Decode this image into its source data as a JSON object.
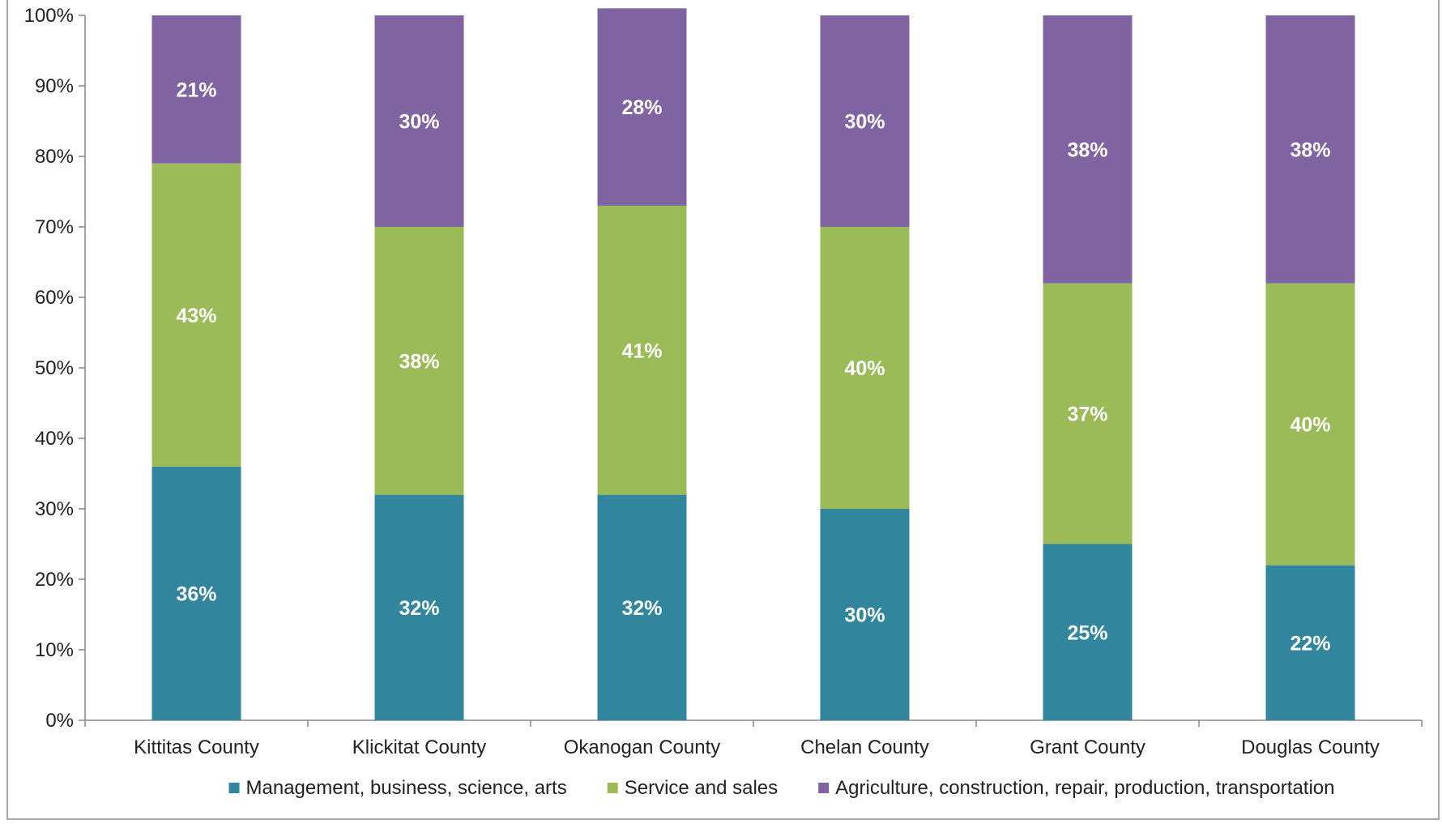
{
  "chart_data": {
    "type": "bar",
    "stacked": true,
    "percent_stacked": true,
    "title": "",
    "xlabel": "",
    "ylabel": "",
    "ylim": [
      0,
      100
    ],
    "y_ticks": [
      "0%",
      "10%",
      "20%",
      "30%",
      "40%",
      "50%",
      "60%",
      "70%",
      "80%",
      "90%",
      "100%"
    ],
    "grid": false,
    "legend_position": "bottom",
    "categories": [
      "Kittitas County",
      "Klickitat County",
      "Okanogan County",
      "Chelan County",
      "Grant County",
      "Douglas County"
    ],
    "series": [
      {
        "name": "Management, business, science, arts",
        "color": "#31859c",
        "values": [
          36,
          32,
          32,
          30,
          25,
          22
        ],
        "labels": [
          "36%",
          "32%",
          "32%",
          "30%",
          "25%",
          "22%"
        ]
      },
      {
        "name": "Service and sales",
        "color": "#9bbb59",
        "values": [
          43,
          38,
          41,
          40,
          37,
          40
        ],
        "labels": [
          "43%",
          "38%",
          "41%",
          "40%",
          "37%",
          "40%"
        ]
      },
      {
        "name": "Agriculture, construction, repair, production, transportation",
        "color": "#8064a2",
        "values": [
          21,
          30,
          28,
          30,
          38,
          38
        ],
        "labels": [
          "21%",
          "30%",
          "28%",
          "30%",
          "38%",
          "38%"
        ]
      }
    ]
  }
}
